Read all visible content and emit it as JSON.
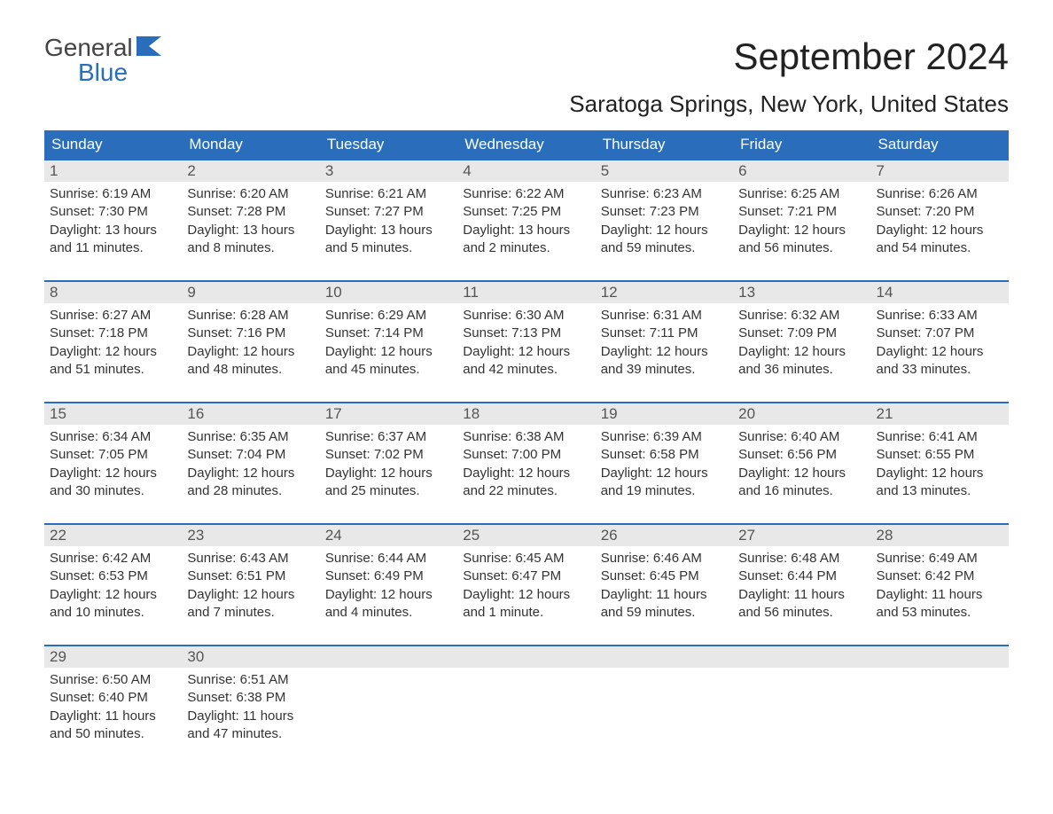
{
  "logo": {
    "text1": "General",
    "text2": "Blue",
    "accent": "#2a6ebb"
  },
  "title": "September 2024",
  "location": "Saratoga Springs, New York, United States",
  "day_headers": [
    "Sunday",
    "Monday",
    "Tuesday",
    "Wednesday",
    "Thursday",
    "Friday",
    "Saturday"
  ],
  "colors": {
    "header_bg": "#2a6ebb",
    "header_text": "#ffffff",
    "daynum_bg": "#e8e8e8",
    "week_border": "#2a6ebb",
    "body_text": "#333333",
    "title_text": "#222222"
  },
  "typography": {
    "title_fontsize": 42,
    "location_fontsize": 26,
    "header_fontsize": 17,
    "daynum_fontsize": 17,
    "body_fontsize": 15
  },
  "weeks": [
    [
      {
        "num": "1",
        "sunrise": "Sunrise: 6:19 AM",
        "sunset": "Sunset: 7:30 PM",
        "daylight1": "Daylight: 13 hours",
        "daylight2": "and 11 minutes."
      },
      {
        "num": "2",
        "sunrise": "Sunrise: 6:20 AM",
        "sunset": "Sunset: 7:28 PM",
        "daylight1": "Daylight: 13 hours",
        "daylight2": "and 8 minutes."
      },
      {
        "num": "3",
        "sunrise": "Sunrise: 6:21 AM",
        "sunset": "Sunset: 7:27 PM",
        "daylight1": "Daylight: 13 hours",
        "daylight2": "and 5 minutes."
      },
      {
        "num": "4",
        "sunrise": "Sunrise: 6:22 AM",
        "sunset": "Sunset: 7:25 PM",
        "daylight1": "Daylight: 13 hours",
        "daylight2": "and 2 minutes."
      },
      {
        "num": "5",
        "sunrise": "Sunrise: 6:23 AM",
        "sunset": "Sunset: 7:23 PM",
        "daylight1": "Daylight: 12 hours",
        "daylight2": "and 59 minutes."
      },
      {
        "num": "6",
        "sunrise": "Sunrise: 6:25 AM",
        "sunset": "Sunset: 7:21 PM",
        "daylight1": "Daylight: 12 hours",
        "daylight2": "and 56 minutes."
      },
      {
        "num": "7",
        "sunrise": "Sunrise: 6:26 AM",
        "sunset": "Sunset: 7:20 PM",
        "daylight1": "Daylight: 12 hours",
        "daylight2": "and 54 minutes."
      }
    ],
    [
      {
        "num": "8",
        "sunrise": "Sunrise: 6:27 AM",
        "sunset": "Sunset: 7:18 PM",
        "daylight1": "Daylight: 12 hours",
        "daylight2": "and 51 minutes."
      },
      {
        "num": "9",
        "sunrise": "Sunrise: 6:28 AM",
        "sunset": "Sunset: 7:16 PM",
        "daylight1": "Daylight: 12 hours",
        "daylight2": "and 48 minutes."
      },
      {
        "num": "10",
        "sunrise": "Sunrise: 6:29 AM",
        "sunset": "Sunset: 7:14 PM",
        "daylight1": "Daylight: 12 hours",
        "daylight2": "and 45 minutes."
      },
      {
        "num": "11",
        "sunrise": "Sunrise: 6:30 AM",
        "sunset": "Sunset: 7:13 PM",
        "daylight1": "Daylight: 12 hours",
        "daylight2": "and 42 minutes."
      },
      {
        "num": "12",
        "sunrise": "Sunrise: 6:31 AM",
        "sunset": "Sunset: 7:11 PM",
        "daylight1": "Daylight: 12 hours",
        "daylight2": "and 39 minutes."
      },
      {
        "num": "13",
        "sunrise": "Sunrise: 6:32 AM",
        "sunset": "Sunset: 7:09 PM",
        "daylight1": "Daylight: 12 hours",
        "daylight2": "and 36 minutes."
      },
      {
        "num": "14",
        "sunrise": "Sunrise: 6:33 AM",
        "sunset": "Sunset: 7:07 PM",
        "daylight1": "Daylight: 12 hours",
        "daylight2": "and 33 minutes."
      }
    ],
    [
      {
        "num": "15",
        "sunrise": "Sunrise: 6:34 AM",
        "sunset": "Sunset: 7:05 PM",
        "daylight1": "Daylight: 12 hours",
        "daylight2": "and 30 minutes."
      },
      {
        "num": "16",
        "sunrise": "Sunrise: 6:35 AM",
        "sunset": "Sunset: 7:04 PM",
        "daylight1": "Daylight: 12 hours",
        "daylight2": "and 28 minutes."
      },
      {
        "num": "17",
        "sunrise": "Sunrise: 6:37 AM",
        "sunset": "Sunset: 7:02 PM",
        "daylight1": "Daylight: 12 hours",
        "daylight2": "and 25 minutes."
      },
      {
        "num": "18",
        "sunrise": "Sunrise: 6:38 AM",
        "sunset": "Sunset: 7:00 PM",
        "daylight1": "Daylight: 12 hours",
        "daylight2": "and 22 minutes."
      },
      {
        "num": "19",
        "sunrise": "Sunrise: 6:39 AM",
        "sunset": "Sunset: 6:58 PM",
        "daylight1": "Daylight: 12 hours",
        "daylight2": "and 19 minutes."
      },
      {
        "num": "20",
        "sunrise": "Sunrise: 6:40 AM",
        "sunset": "Sunset: 6:56 PM",
        "daylight1": "Daylight: 12 hours",
        "daylight2": "and 16 minutes."
      },
      {
        "num": "21",
        "sunrise": "Sunrise: 6:41 AM",
        "sunset": "Sunset: 6:55 PM",
        "daylight1": "Daylight: 12 hours",
        "daylight2": "and 13 minutes."
      }
    ],
    [
      {
        "num": "22",
        "sunrise": "Sunrise: 6:42 AM",
        "sunset": "Sunset: 6:53 PM",
        "daylight1": "Daylight: 12 hours",
        "daylight2": "and 10 minutes."
      },
      {
        "num": "23",
        "sunrise": "Sunrise: 6:43 AM",
        "sunset": "Sunset: 6:51 PM",
        "daylight1": "Daylight: 12 hours",
        "daylight2": "and 7 minutes."
      },
      {
        "num": "24",
        "sunrise": "Sunrise: 6:44 AM",
        "sunset": "Sunset: 6:49 PM",
        "daylight1": "Daylight: 12 hours",
        "daylight2": "and 4 minutes."
      },
      {
        "num": "25",
        "sunrise": "Sunrise: 6:45 AM",
        "sunset": "Sunset: 6:47 PM",
        "daylight1": "Daylight: 12 hours",
        "daylight2": "and 1 minute."
      },
      {
        "num": "26",
        "sunrise": "Sunrise: 6:46 AM",
        "sunset": "Sunset: 6:45 PM",
        "daylight1": "Daylight: 11 hours",
        "daylight2": "and 59 minutes."
      },
      {
        "num": "27",
        "sunrise": "Sunrise: 6:48 AM",
        "sunset": "Sunset: 6:44 PM",
        "daylight1": "Daylight: 11 hours",
        "daylight2": "and 56 minutes."
      },
      {
        "num": "28",
        "sunrise": "Sunrise: 6:49 AM",
        "sunset": "Sunset: 6:42 PM",
        "daylight1": "Daylight: 11 hours",
        "daylight2": "and 53 minutes."
      }
    ],
    [
      {
        "num": "29",
        "sunrise": "Sunrise: 6:50 AM",
        "sunset": "Sunset: 6:40 PM",
        "daylight1": "Daylight: 11 hours",
        "daylight2": "and 50 minutes."
      },
      {
        "num": "30",
        "sunrise": "Sunrise: 6:51 AM",
        "sunset": "Sunset: 6:38 PM",
        "daylight1": "Daylight: 11 hours",
        "daylight2": "and 47 minutes."
      },
      {
        "empty": true
      },
      {
        "empty": true
      },
      {
        "empty": true
      },
      {
        "empty": true
      },
      {
        "empty": true
      }
    ]
  ]
}
